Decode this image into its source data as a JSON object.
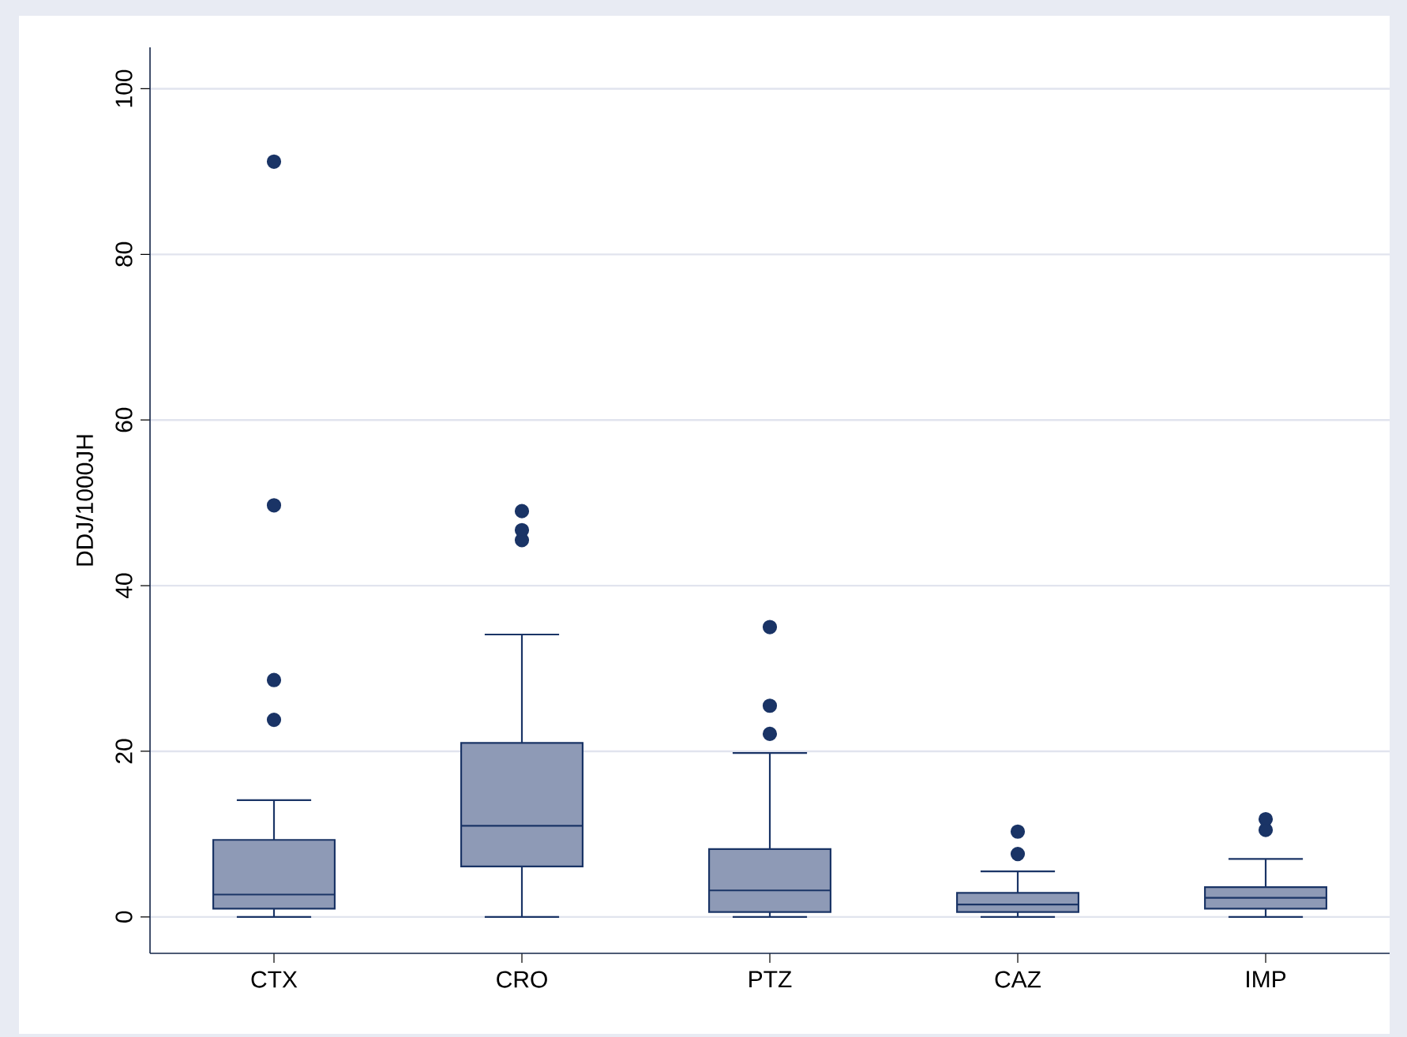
{
  "chart_data": {
    "type": "box",
    "ylabel": "DDJ/1000JH",
    "categories": [
      "CTX",
      "CRO",
      "PTZ",
      "CAZ",
      "IMP"
    ],
    "boxes": [
      {
        "low": 0,
        "q1": 1.0,
        "median": 2.7,
        "q3": 9.3,
        "high": 14.1,
        "outliers": [
          23.8,
          28.6,
          49.7,
          91.2
        ]
      },
      {
        "low": 0,
        "q1": 6.1,
        "median": 11.0,
        "q3": 21.0,
        "high": 34.1,
        "outliers": [
          45.5,
          46.7,
          49.0
        ]
      },
      {
        "low": 0,
        "q1": 0.6,
        "median": 3.2,
        "q3": 8.2,
        "high": 19.8,
        "outliers": [
          22.1,
          25.5,
          35.0
        ]
      },
      {
        "low": 0,
        "q1": 0.6,
        "median": 1.5,
        "q3": 2.9,
        "high": 5.5,
        "outliers": [
          7.6,
          10.3
        ]
      },
      {
        "low": 0,
        "q1": 1.0,
        "median": 2.3,
        "q3": 3.6,
        "high": 7.0,
        "outliers": [
          10.5,
          11.8
        ]
      }
    ],
    "color": "#8e9ab6",
    "ylim": [
      -4.4,
      105
    ],
    "yticks": [
      0,
      20,
      40,
      60,
      80,
      100
    ],
    "grid": "y",
    "marker": "circle"
  }
}
